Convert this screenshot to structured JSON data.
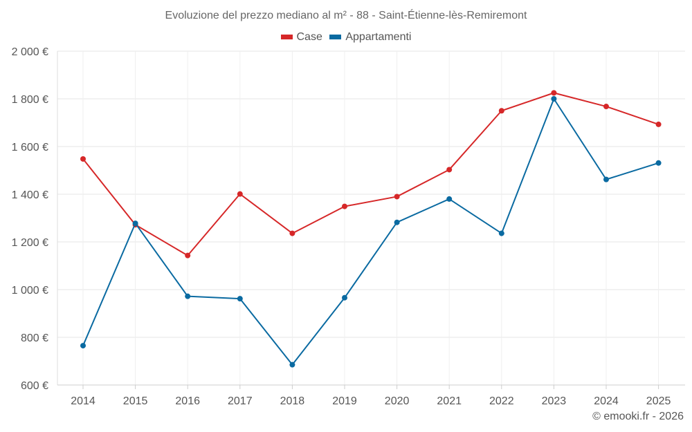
{
  "chart_data": {
    "type": "line",
    "title": "Evoluzione del prezzo mediano al m² - 88 - Saint-Étienne-lès-Remiremont",
    "xlabel": "",
    "ylabel": "",
    "categories": [
      "2014",
      "2015",
      "2016",
      "2017",
      "2018",
      "2019",
      "2020",
      "2021",
      "2022",
      "2023",
      "2024",
      "2025"
    ],
    "ylim": [
      600,
      2000
    ],
    "yticks": [
      600,
      800,
      1000,
      1200,
      1400,
      1600,
      1800,
      2000
    ],
    "ytick_labels": [
      "600 €",
      "800 €",
      "1 000 €",
      "1 200 €",
      "1 400 €",
      "1 600 €",
      "1 800 €",
      "2 000 €"
    ],
    "grid": true,
    "legend_position": "top-center",
    "series": [
      {
        "name": "Case",
        "color": "#d62728",
        "values": [
          1548,
          1272,
          1143,
          1401,
          1236,
          1349,
          1390,
          1503,
          1750,
          1825,
          1768,
          1693
        ]
      },
      {
        "name": "Appartamenti",
        "color": "#0a6aa1",
        "values": [
          765,
          1278,
          972,
          962,
          685,
          966,
          1282,
          1380,
          1236,
          1800,
          1462,
          1531
        ]
      }
    ]
  },
  "credit": "© emooki.fr - 2026"
}
